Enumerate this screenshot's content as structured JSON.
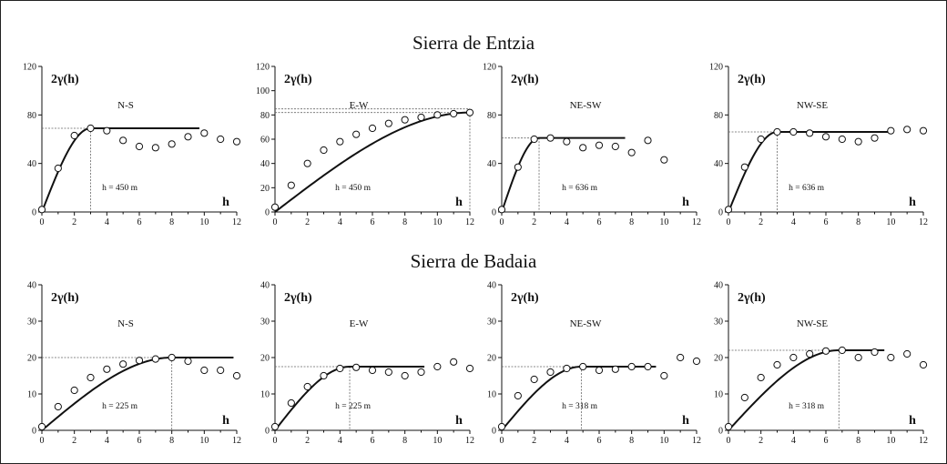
{
  "sections": [
    {
      "title": "Sierra de Entzia"
    },
    {
      "title": "Sierra de Badaia"
    }
  ],
  "chart_data": [
    {
      "type": "scatter",
      "title": "N-S",
      "ylabel": "2γ(h)",
      "xlabel": "h",
      "note": "h = 450 m",
      "xlim": [
        0,
        12
      ],
      "ylim": [
        0,
        120
      ],
      "yticks": [
        0,
        40,
        80,
        120
      ],
      "xticks": [
        0,
        2,
        4,
        6,
        8,
        10,
        12
      ],
      "sill": 69,
      "range": 3,
      "model_end": 9.7,
      "points": [
        [
          0,
          2
        ],
        [
          1,
          36
        ],
        [
          2,
          63
        ],
        [
          3,
          69
        ],
        [
          4,
          67
        ],
        [
          5,
          59
        ],
        [
          6,
          54
        ],
        [
          7,
          53
        ],
        [
          8,
          56
        ],
        [
          9,
          62
        ],
        [
          10,
          65
        ],
        [
          11,
          60
        ],
        [
          12,
          58
        ]
      ]
    },
    {
      "type": "scatter",
      "title": "E-W",
      "ylabel": "2γ(h)",
      "xlabel": "h",
      "note": "h = 450 m",
      "xlim": [
        0,
        12
      ],
      "ylim": [
        0,
        120
      ],
      "yticks": [
        0,
        20,
        40,
        60,
        80,
        100,
        120
      ],
      "xticks": [
        0,
        2,
        4,
        6,
        8,
        10,
        12
      ],
      "sill": 82,
      "sill2": 85,
      "range": 12,
      "model_end": 12,
      "points": [
        [
          0,
          4
        ],
        [
          1,
          22
        ],
        [
          2,
          40
        ],
        [
          3,
          51
        ],
        [
          4,
          58
        ],
        [
          5,
          64
        ],
        [
          6,
          69
        ],
        [
          7,
          73
        ],
        [
          8,
          76
        ],
        [
          9,
          78
        ],
        [
          10,
          80
        ],
        [
          11,
          81
        ],
        [
          12,
          82
        ]
      ]
    },
    {
      "type": "scatter",
      "title": "NE-SW",
      "ylabel": "2γ(h)",
      "xlabel": "h",
      "note": "h = 636 m",
      "xlim": [
        0,
        12
      ],
      "ylim": [
        0,
        120
      ],
      "yticks": [
        0,
        40,
        80,
        120
      ],
      "xticks": [
        0,
        2,
        4,
        6,
        8,
        10,
        12
      ],
      "sill": 61,
      "range": 2.3,
      "model_end": 7.6,
      "points": [
        [
          0,
          2
        ],
        [
          1,
          37
        ],
        [
          2,
          60
        ],
        [
          3,
          61
        ],
        [
          4,
          58
        ],
        [
          5,
          53
        ],
        [
          6,
          55
        ],
        [
          7,
          54
        ],
        [
          8,
          49
        ],
        [
          9,
          59
        ],
        [
          10,
          43
        ]
      ]
    },
    {
      "type": "scatter",
      "title": "NW-SE",
      "ylabel": "2γ(h)",
      "xlabel": "h",
      "note": "h = 636 m",
      "xlim": [
        0,
        12
      ],
      "ylim": [
        0,
        120
      ],
      "yticks": [
        0,
        40,
        80,
        120
      ],
      "xticks": [
        0,
        2,
        4,
        6,
        8,
        10,
        12
      ],
      "sill": 66,
      "range": 3,
      "model_end": 10,
      "points": [
        [
          0,
          2
        ],
        [
          1,
          37
        ],
        [
          2,
          60
        ],
        [
          3,
          66
        ],
        [
          4,
          66
        ],
        [
          5,
          65
        ],
        [
          6,
          62
        ],
        [
          7,
          60
        ],
        [
          8,
          58
        ],
        [
          9,
          61
        ],
        [
          10,
          67
        ],
        [
          11,
          68
        ],
        [
          12,
          67
        ]
      ]
    },
    {
      "type": "scatter",
      "title": "N-S",
      "ylabel": "2γ(h)",
      "xlabel": "h",
      "note": "h = 225 m",
      "xlim": [
        0,
        12
      ],
      "ylim": [
        0,
        40
      ],
      "yticks": [
        0,
        10,
        20,
        30,
        40
      ],
      "xticks": [
        0,
        2,
        4,
        6,
        8,
        10,
        12
      ],
      "sill": 20,
      "range": 8,
      "model_end": 11.8,
      "points": [
        [
          0,
          1
        ],
        [
          1,
          6.5
        ],
        [
          2,
          11
        ],
        [
          3,
          14.5
        ],
        [
          4,
          16.8
        ],
        [
          5,
          18.2
        ],
        [
          6,
          19.2
        ],
        [
          7,
          19.6
        ],
        [
          8,
          20
        ],
        [
          9,
          19
        ],
        [
          10,
          16.5
        ],
        [
          11,
          16.5
        ],
        [
          12,
          15
        ]
      ]
    },
    {
      "type": "scatter",
      "title": "E-W",
      "ylabel": "2γ(h)",
      "xlabel": "h",
      "note": "h = 225 m",
      "xlim": [
        0,
        12
      ],
      "ylim": [
        0,
        40
      ],
      "yticks": [
        0,
        10,
        20,
        30,
        40
      ],
      "xticks": [
        0,
        2,
        4,
        6,
        8,
        10,
        12
      ],
      "sill": 17.5,
      "range": 4.6,
      "model_end": 9.2,
      "points": [
        [
          0,
          1
        ],
        [
          1,
          7.5
        ],
        [
          2,
          12
        ],
        [
          3,
          15
        ],
        [
          4,
          17
        ],
        [
          5,
          17.3
        ],
        [
          6,
          16.5
        ],
        [
          7,
          16
        ],
        [
          8,
          15
        ],
        [
          9,
          16
        ],
        [
          10,
          17.5
        ],
        [
          11,
          18.8
        ],
        [
          12,
          17
        ]
      ]
    },
    {
      "type": "scatter",
      "title": "NE-SW",
      "ylabel": "2γ(h)",
      "xlabel": "h",
      "note": "h = 318 m",
      "xlim": [
        0,
        12
      ],
      "ylim": [
        0,
        40
      ],
      "yticks": [
        0,
        10,
        20,
        30,
        40
      ],
      "xticks": [
        0,
        2,
        4,
        6,
        8,
        10,
        12
      ],
      "sill": 17.5,
      "range": 4.9,
      "model_end": 9.5,
      "points": [
        [
          0,
          1
        ],
        [
          1,
          9.5
        ],
        [
          2,
          14
        ],
        [
          3,
          16
        ],
        [
          4,
          17
        ],
        [
          5,
          17.5
        ],
        [
          6,
          16.5
        ],
        [
          7,
          16.8
        ],
        [
          8,
          17.5
        ],
        [
          9,
          17.5
        ],
        [
          10,
          15
        ],
        [
          11,
          20
        ],
        [
          12,
          19
        ]
      ]
    },
    {
      "type": "scatter",
      "title": "NW-SE",
      "ylabel": "2γ(h)",
      "xlabel": "h",
      "note": "h = 318 m",
      "xlim": [
        0,
        12
      ],
      "ylim": [
        0,
        40
      ],
      "yticks": [
        0,
        10,
        20,
        30,
        40
      ],
      "xticks": [
        0,
        2,
        4,
        6,
        8,
        10,
        12
      ],
      "sill": 22,
      "range": 6.8,
      "model_end": 9.6,
      "points": [
        [
          0,
          1
        ],
        [
          1,
          9
        ],
        [
          2,
          14.5
        ],
        [
          3,
          18
        ],
        [
          4,
          20
        ],
        [
          5,
          21
        ],
        [
          6,
          21.8
        ],
        [
          7,
          22
        ],
        [
          8,
          20
        ],
        [
          9,
          21.5
        ],
        [
          10,
          20
        ],
        [
          11,
          21
        ],
        [
          12,
          18
        ]
      ]
    }
  ]
}
